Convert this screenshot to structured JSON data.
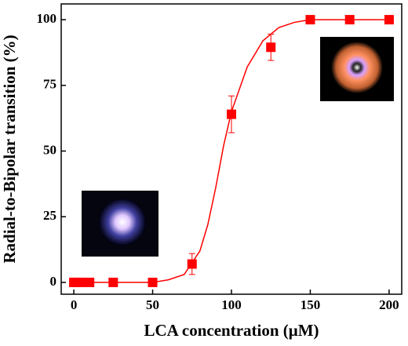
{
  "chart_data": {
    "type": "scatter",
    "x_label": "LCA concentration (μM)",
    "y_label": "Radial-to-Bipolar transition (%)",
    "x": [
      0,
      2,
      5,
      10,
      25,
      50,
      75,
      100,
      125,
      150,
      175,
      200
    ],
    "values": [
      0,
      0,
      0,
      0,
      0,
      0,
      7,
      64,
      89.5,
      100,
      100,
      100
    ],
    "errors": [
      0,
      0,
      0,
      0,
      0,
      0,
      4,
      7,
      5,
      0,
      0,
      0
    ],
    "color": "#ff0000",
    "fit": {
      "x": [
        0,
        50,
        60,
        70,
        80,
        85,
        90,
        95,
        100,
        110,
        120,
        130,
        140,
        150,
        175,
        200
      ],
      "values": [
        0,
        0,
        1,
        3,
        12,
        22,
        36,
        52,
        65,
        82,
        92,
        97,
        99,
        100,
        100,
        100
      ]
    },
    "xlim": [
      -8,
      208
    ],
    "ylim": [
      -4.5,
      106
    ],
    "xticks": [
      0,
      50,
      100,
      150,
      200
    ],
    "yticks": [
      0,
      25,
      50,
      75,
      100
    ]
  }
}
